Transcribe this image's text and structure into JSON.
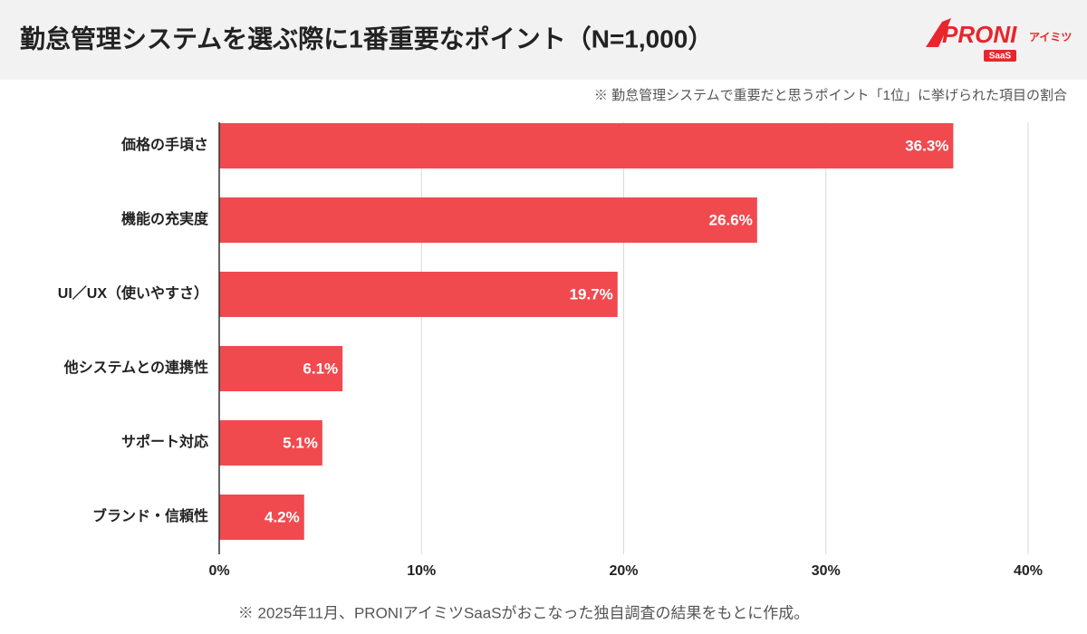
{
  "chart_data": {
    "type": "bar",
    "orientation": "horizontal",
    "title": "勤怠管理システムを選ぶ際に1番重要なポイント（N=1,000）",
    "subtitle": "※ 勤怠管理システムで重要だと思うポイント「1位」に挙げられた項目の割合",
    "note": "※ 2025年11月、PRONIアイミツSaaSがおこなった独自調査の結果をもとに作成。",
    "categories": [
      "価格の手頃さ",
      "機能の充実度",
      "UI／UX（使いやすさ）",
      "他システムとの連携性",
      "サポート対応",
      "ブランド・信頼性"
    ],
    "values": [
      36.3,
      26.6,
      19.7,
      6.1,
      5.1,
      4.2
    ],
    "value_labels": [
      "36.3%",
      "26.6%",
      "19.7%",
      "6.1%",
      "5.1%",
      "4.2%"
    ],
    "color": "#f04a4f",
    "xlim": [
      0,
      40
    ],
    "xticks": [
      {
        "value": 0,
        "label": "0%"
      },
      {
        "value": 10,
        "label": "10%"
      },
      {
        "value": 20,
        "label": "20%"
      },
      {
        "value": 30,
        "label": "30%"
      },
      {
        "value": 40,
        "label": "40%"
      }
    ],
    "grid": true
  },
  "logo": {
    "brand": "PRONI",
    "suffix": "アイミツ",
    "badge": "SaaS"
  }
}
